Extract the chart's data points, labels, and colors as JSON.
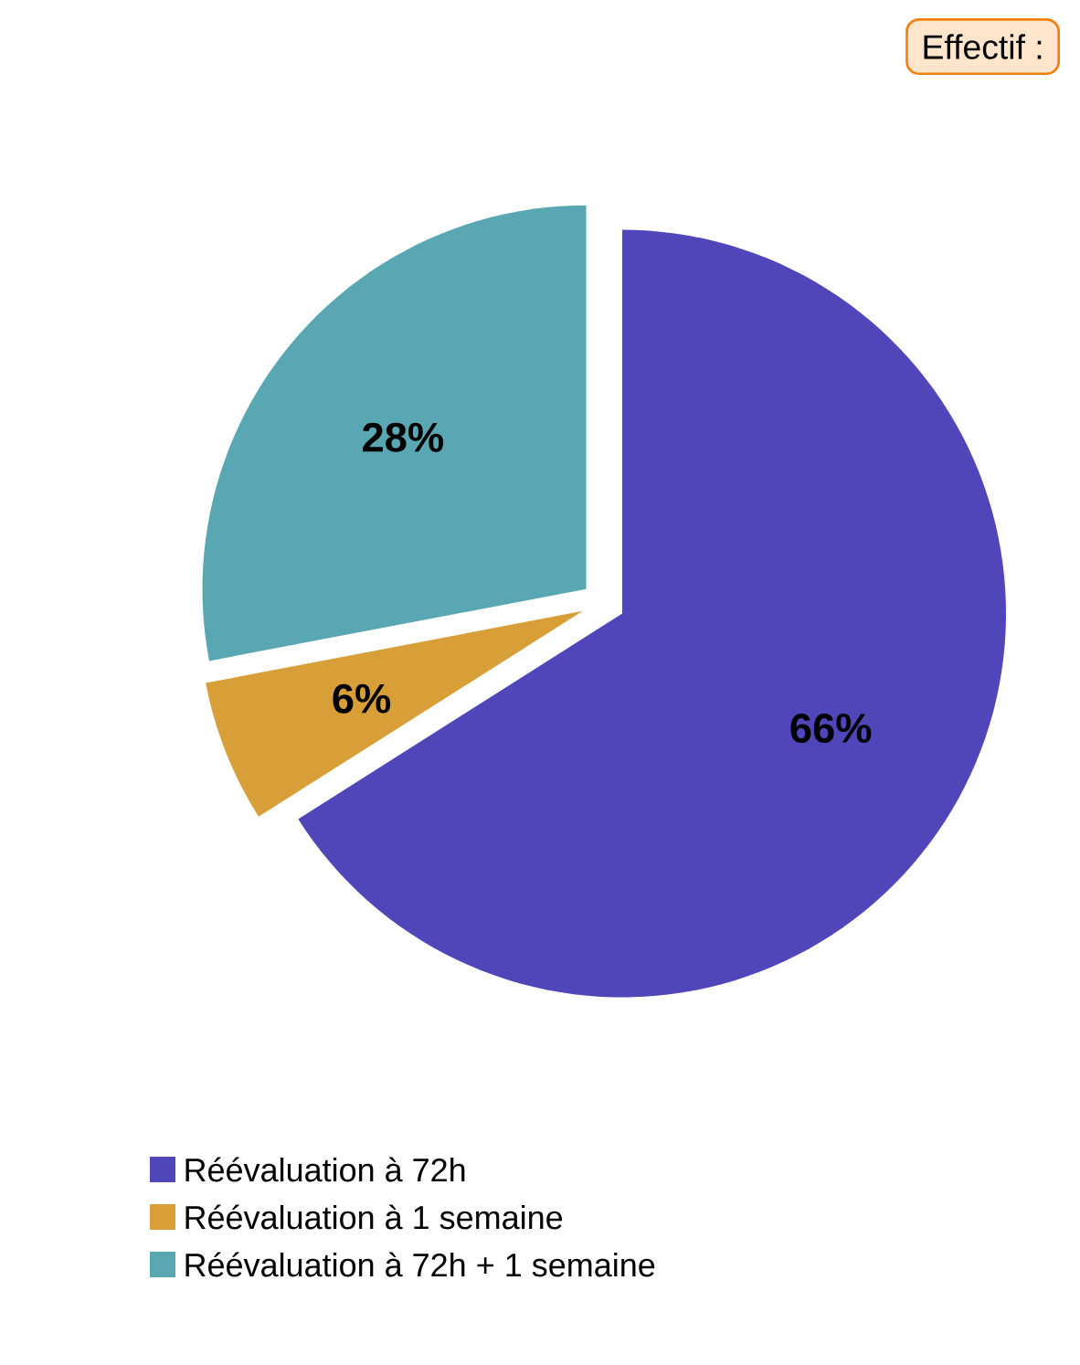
{
  "chart_data": {
    "type": "pie",
    "categories": [
      "Réévaluation à 72h",
      "Réévaluation à 1 semaine",
      "Réévaluation à 72h + 1 semaine"
    ],
    "values": [
      66,
      6,
      28
    ],
    "colors": [
      "#5046b9",
      "#d89e38",
      "#5aa7b4"
    ],
    "value_labels": [
      "66%",
      "6%",
      "28%"
    ],
    "legend": "bottom",
    "annotations": [
      "Effectif :"
    ]
  }
}
